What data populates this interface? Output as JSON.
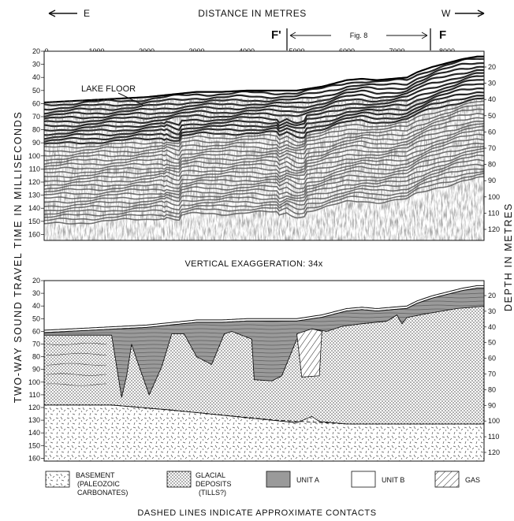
{
  "header": {
    "east_label": "E",
    "west_label": "W",
    "distance_title": "DISTANCE IN METRES",
    "f_prime_label": "F'",
    "f_label": "F",
    "fig_ref_label": "Fig. 8"
  },
  "x_ticks": [
    "0",
    "1000",
    "2000",
    "3000",
    "4000",
    "5000",
    "6000",
    "7000",
    "8000"
  ],
  "time_ticks": [
    "20",
    "30",
    "40",
    "50",
    "60",
    "70",
    "80",
    "90",
    "100",
    "110",
    "120",
    "130",
    "140",
    "150",
    "160"
  ],
  "depth_ticks": [
    "20",
    "30",
    "40",
    "50",
    "60",
    "70",
    "80",
    "90",
    "100",
    "110",
    "120"
  ],
  "upper_panel": {
    "lake_floor_label": "LAKE FLOOR"
  },
  "vertical_exaggeration": "VERTICAL EXAGGERATION:  34x",
  "y_axis_left_title": "TWO-WAY SOUND TRAVEL TIME IN MILLISECONDS",
  "y_axis_right_title": "DEPTH IN METRES",
  "legend": [
    {
      "key": "basement",
      "line1": "BASEMENT",
      "line2": "(PALEOZOIC",
      "line3": "CARBONATES)"
    },
    {
      "key": "glacial",
      "line1": "GLACIAL",
      "line2": "DEPOSITS",
      "line3": "(TILLS?)"
    },
    {
      "key": "unit_a",
      "line1": "UNIT A",
      "line2": "",
      "line3": ""
    },
    {
      "key": "unit_b",
      "line1": "UNIT B",
      "line2": "",
      "line3": ""
    },
    {
      "key": "gas",
      "line1": "GAS",
      "line2": "",
      "line3": ""
    }
  ],
  "footer_note": "DASHED LINES INDICATE APPROXIMATE CONTACTS",
  "colors": {
    "unit_a_fill": "#9a9a9a",
    "glacial_dot": "#555555",
    "line": "#111111"
  }
}
